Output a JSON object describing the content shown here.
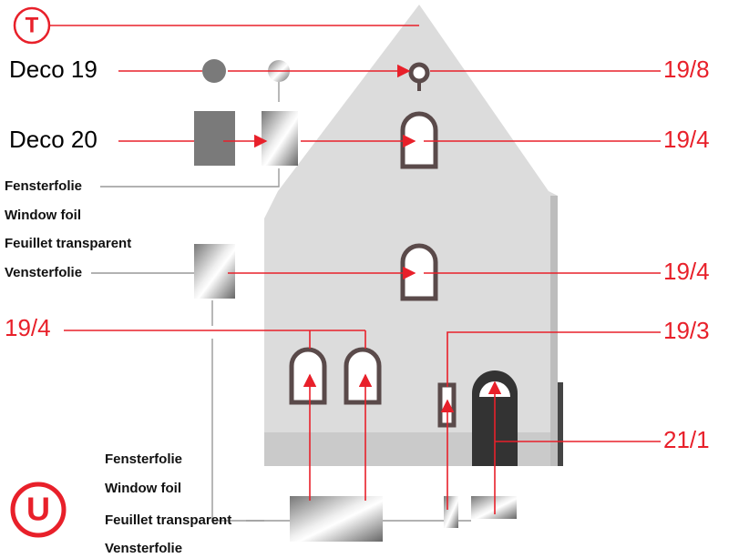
{
  "markers": {
    "top": "T",
    "bottom": "U"
  },
  "parts": [
    "Deco 19",
    "Deco 20"
  ],
  "foil_labels": [
    [
      "Fensterfolie",
      "Window foil",
      "Feuillet transparent",
      "Vensterfolie"
    ],
    [
      "Fensterfolie",
      "Window foil",
      "Feuillet transparent",
      "Vensterfolie"
    ]
  ],
  "part_numbers": [
    "19/8",
    "19/4",
    "19/4",
    "19/4",
    "19/3",
    "21/1"
  ]
}
